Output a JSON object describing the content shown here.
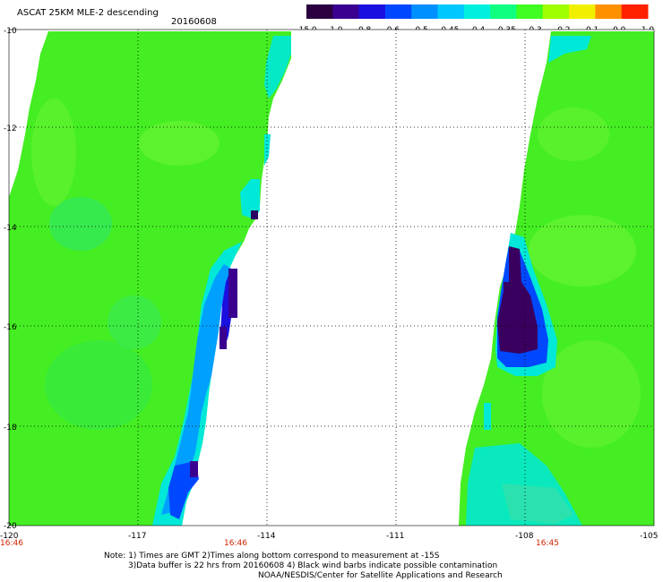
{
  "header": {
    "title": "ASCAT 25KM MLE-2 descending",
    "date": "20160608"
  },
  "colorbar": {
    "labels": [
      "-15.0",
      "-1.0",
      "-0.8",
      "-0.6",
      "-0.5",
      "-0.45",
      "-0.4",
      "-0.35",
      "-0.3",
      "-0.2",
      "-0.1",
      "0.0",
      "1.0"
    ],
    "colors": [
      "#2a0040",
      "#3a0090",
      "#1a10e0",
      "#0048ff",
      "#0090ff",
      "#00c8ff",
      "#00f0e0",
      "#10ff80",
      "#40ff20",
      "#a0ff00",
      "#f0f000",
      "#ff9000",
      "#ff2000"
    ]
  },
  "axes": {
    "x_ticks": [
      "-120",
      "-117",
      "-114",
      "-111",
      "-108",
      "-105"
    ],
    "y_ticks": [
      "-10",
      "-12",
      "-14",
      "-16",
      "-18",
      "-20"
    ]
  },
  "times": {
    "t1": "16:46",
    "t2": "16:46",
    "t3": "16:45"
  },
  "notes": {
    "line1": "Note: 1) Times are GMT 2)Times along bottom correspond to measurement at -15S",
    "line2": "3)Data buffer is 22 hrs from 20160608 4) Black wind barbs indicate possible contamination",
    "line3": "NOAA/NESDIS/Center for Satellite Applications and Research"
  },
  "palette": {
    "green": "#44ee22",
    "light_green": "#77ff33",
    "cyan": "#00e8d8",
    "blue": "#0050ff",
    "dark_purple": "#2a0060"
  }
}
